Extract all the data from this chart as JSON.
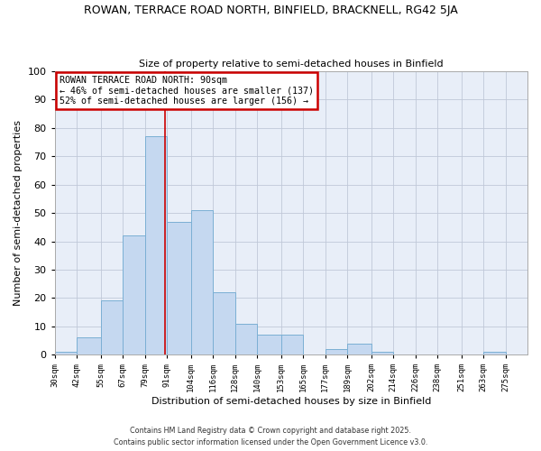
{
  "title": "ROWAN, TERRACE ROAD NORTH, BINFIELD, BRACKNELL, RG42 5JA",
  "subtitle": "Size of property relative to semi-detached houses in Binfield",
  "xlabel": "Distribution of semi-detached houses by size in Binfield",
  "ylabel": "Number of semi-detached properties",
  "bar_color": "#c5d8f0",
  "bar_edge_color": "#7bafd4",
  "bg_color": "#e8eef8",
  "grid_color": "#c0c8d8",
  "bin_labels": [
    "30sqm",
    "42sqm",
    "55sqm",
    "67sqm",
    "79sqm",
    "91sqm",
    "104sqm",
    "116sqm",
    "128sqm",
    "140sqm",
    "153sqm",
    "165sqm",
    "177sqm",
    "189sqm",
    "202sqm",
    "214sqm",
    "226sqm",
    "238sqm",
    "251sqm",
    "263sqm",
    "275sqm"
  ],
  "bin_edges": [
    30,
    42,
    55,
    67,
    79,
    91,
    104,
    116,
    128,
    140,
    153,
    165,
    177,
    189,
    202,
    214,
    226,
    238,
    251,
    263,
    275,
    287
  ],
  "counts": [
    1,
    6,
    19,
    42,
    77,
    47,
    51,
    22,
    11,
    7,
    7,
    0,
    2,
    4,
    1,
    0,
    0,
    0,
    0,
    1,
    0
  ],
  "property_size": 90,
  "property_name": "ROWAN TERRACE ROAD NORTH",
  "pct_smaller": 46,
  "pct_larger": 52,
  "n_smaller": 137,
  "n_larger": 156,
  "vline_color": "#cc0000",
  "annotation_box_color": "#cc0000",
  "ylim": [
    0,
    100
  ],
  "yticks": [
    0,
    10,
    20,
    30,
    40,
    50,
    60,
    70,
    80,
    90,
    100
  ],
  "footer1": "Contains HM Land Registry data © Crown copyright and database right 2025.",
  "footer2": "Contains public sector information licensed under the Open Government Licence v3.0."
}
